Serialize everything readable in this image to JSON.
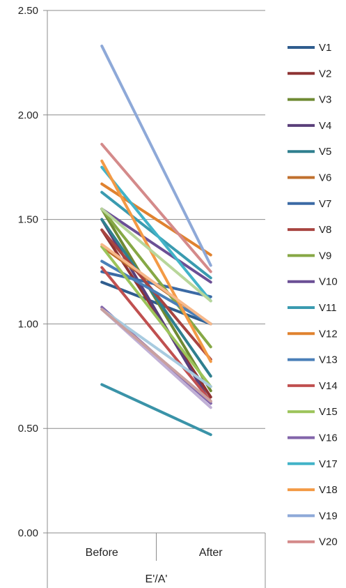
{
  "chart_data": {
    "type": "line",
    "title": "",
    "xlabel": "E'/A'",
    "ylabel": "",
    "categories": [
      "Before",
      "After"
    ],
    "ylim": [
      0,
      2.5
    ],
    "yticks": [
      "0.00",
      "0.50",
      "1.00",
      "1.50",
      "2.00",
      "2.50"
    ],
    "ytick_values": [
      0,
      0.5,
      1.0,
      1.5,
      2.0,
      2.5
    ],
    "grid": true,
    "legend_position": "right",
    "series": [
      {
        "name": "V1",
        "color": "#2f5d8e",
        "values": [
          1.2,
          1.0
        ]
      },
      {
        "name": "V2",
        "color": "#8e3333",
        "values": [
          1.45,
          0.65
        ]
      },
      {
        "name": "V3",
        "color": "#6f8a33",
        "values": [
          1.55,
          0.68
        ]
      },
      {
        "name": "V4",
        "color": "#5a3f7a",
        "values": [
          1.5,
          0.62
        ]
      },
      {
        "name": "V5",
        "color": "#2f7f8e",
        "values": [
          1.5,
          0.75
        ]
      },
      {
        "name": "V6",
        "color": "#c0702e",
        "values": [
          1.37,
          1.0
        ]
      },
      {
        "name": "V7",
        "color": "#3b6aa5",
        "values": [
          1.25,
          1.13
        ]
      },
      {
        "name": "V8",
        "color": "#a84440",
        "values": [
          1.45,
          0.83
        ]
      },
      {
        "name": "V9",
        "color": "#86a845",
        "values": [
          1.55,
          0.89
        ]
      },
      {
        "name": "V10",
        "color": "#6b4f95",
        "values": [
          1.55,
          1.2
        ]
      },
      {
        "name": "V11",
        "color": "#3a9bb0",
        "values": [
          1.63,
          1.22
        ]
      },
      {
        "name": "V12",
        "color": "#e0822f",
        "values": [
          1.67,
          1.33
        ]
      },
      {
        "name": "V13",
        "color": "#4a7fb8",
        "values": [
          1.3,
          1.0
        ]
      },
      {
        "name": "V14",
        "color": "#c05050",
        "values": [
          1.27,
          0.63
        ]
      },
      {
        "name": "V15",
        "color": "#9cc45a",
        "values": [
          1.37,
          0.7
        ]
      },
      {
        "name": "V16",
        "color": "#8265aa",
        "values": [
          1.08,
          0.62
        ]
      },
      {
        "name": "V17",
        "color": "#42b3c8",
        "values": [
          1.75,
          1.11
        ]
      },
      {
        "name": "V18",
        "color": "#f39a45",
        "values": [
          1.78,
          0.82
        ]
      },
      {
        "name": "V19",
        "color": "#8ea9d8",
        "values": [
          2.33,
          1.28
        ]
      },
      {
        "name": "V20",
        "color": "#d48a8a",
        "values": [
          1.86,
          1.25
        ]
      },
      {
        "name": "",
        "color": "#b8d69a",
        "values": [
          1.55,
          1.11
        ]
      },
      {
        "name": "",
        "color": "#f7b88a",
        "values": [
          1.38,
          1.0
        ]
      },
      {
        "name": "",
        "color": "#a8cbe0",
        "values": [
          1.07,
          0.7
        ]
      },
      {
        "name": "",
        "color": "#c0b0d6",
        "values": [
          1.07,
          0.6
        ]
      },
      {
        "name": "",
        "color": "#c9a0a0",
        "values": [
          1.07,
          0.63
        ]
      },
      {
        "name": "",
        "color": "#3a93a8",
        "values": [
          0.71,
          0.47
        ]
      }
    ]
  }
}
